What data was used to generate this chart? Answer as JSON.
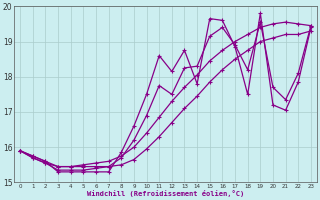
{
  "xlabel": "Windchill (Refroidissement éolien,°C)",
  "background_color": "#cceef0",
  "grid_color": "#aacccc",
  "line_color": "#880088",
  "xlim": [
    -0.5,
    23.5
  ],
  "ylim": [
    15,
    20
  ],
  "yticks": [
    15,
    16,
    17,
    18,
    19,
    20
  ],
  "xticks": [
    0,
    1,
    2,
    3,
    4,
    5,
    6,
    7,
    8,
    9,
    10,
    11,
    12,
    13,
    14,
    15,
    16,
    17,
    18,
    19,
    20,
    21,
    22,
    23
  ],
  "series": [
    [
      15.9,
      15.75,
      15.6,
      15.3,
      15.3,
      15.3,
      15.3,
      15.3,
      15.85,
      16.6,
      17.5,
      18.6,
      18.15,
      18.75,
      17.8,
      19.65,
      19.6,
      18.85,
      17.5,
      19.8,
      17.2,
      17.05,
      17.85,
      19.4
    ],
    [
      15.9,
      15.75,
      15.6,
      15.45,
      15.45,
      15.5,
      15.55,
      15.6,
      15.75,
      16.0,
      16.4,
      16.85,
      17.3,
      17.7,
      18.05,
      18.45,
      18.75,
      19.0,
      19.2,
      19.4,
      19.5,
      19.55,
      19.5,
      19.45
    ],
    [
      15.9,
      15.7,
      15.55,
      15.35,
      15.35,
      15.35,
      15.4,
      15.45,
      15.7,
      16.2,
      16.9,
      17.75,
      17.5,
      18.25,
      18.3,
      19.15,
      19.4,
      18.9,
      18.2,
      19.55,
      17.7,
      17.35,
      18.1,
      19.45
    ],
    [
      15.9,
      15.7,
      15.55,
      15.45,
      15.45,
      15.45,
      15.45,
      15.45,
      15.5,
      15.65,
      15.95,
      16.3,
      16.7,
      17.1,
      17.45,
      17.85,
      18.2,
      18.5,
      18.75,
      19.0,
      19.1,
      19.2,
      19.2,
      19.3
    ]
  ]
}
